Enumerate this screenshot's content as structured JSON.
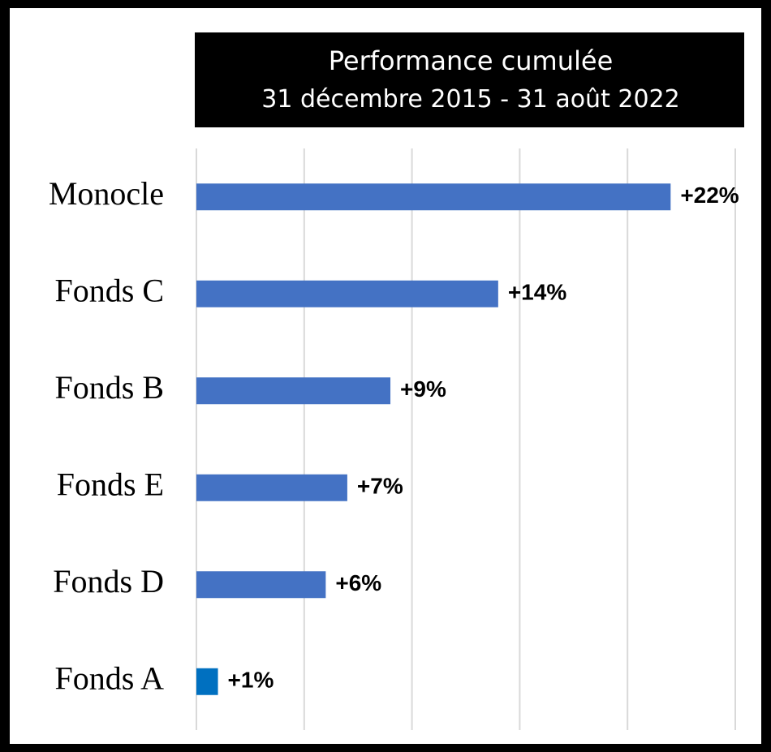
{
  "chart_data": {
    "type": "bar",
    "orientation": "horizontal",
    "title": "Performance cumulée",
    "subtitle": "31 décembre 2015 - 31 août 2022",
    "categories": [
      "Monocle",
      "Fonds C",
      "Fonds B",
      "Fonds E",
      "Fonds D",
      "Fonds A"
    ],
    "values": [
      22,
      14,
      9,
      7,
      6,
      1
    ],
    "value_labels": [
      "+22%",
      "+14%",
      "+9%",
      "+7%",
      "+6%",
      "+1%"
    ],
    "colors": [
      "#4472c4",
      "#4472c4",
      "#4472c4",
      "#4472c4",
      "#4472c4",
      "#0070c0"
    ],
    "xlim": [
      0,
      25
    ],
    "xticks": [
      0,
      5,
      10,
      15,
      20,
      25
    ],
    "grid": true
  }
}
